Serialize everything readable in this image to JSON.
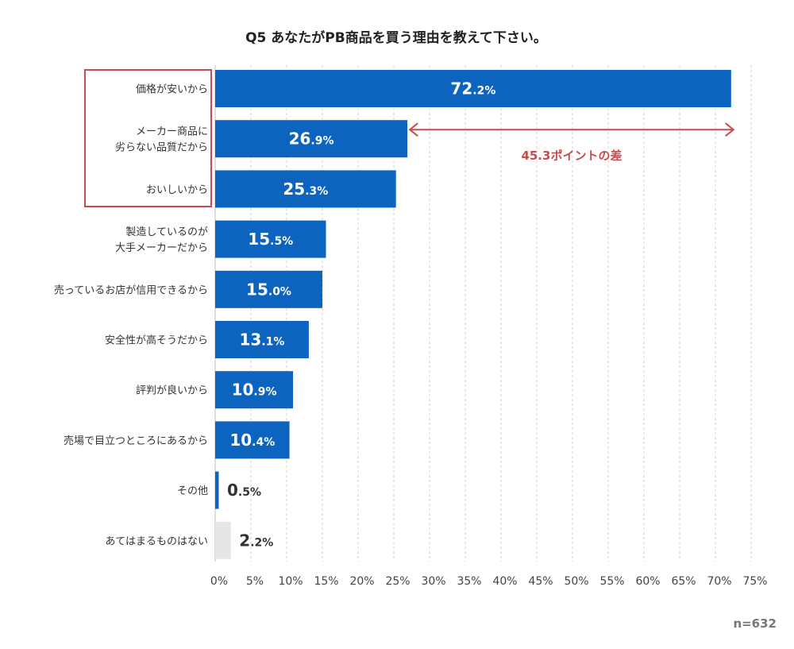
{
  "chart_data": {
    "type": "bar",
    "orientation": "horizontal",
    "title": "Q5 あなたがPB商品を買う理由を教えて下さい。",
    "categories": [
      "価格が安いから",
      "メーカー商品に\n劣らない品質だから",
      "おいしいから",
      "製造しているのが\n大手メーカーだから",
      "売っているお店が信用できるから",
      "安全性が高そうだから",
      "評判が良いから",
      "売場で目立つところにあるから",
      "その他",
      "あてはまるものはない"
    ],
    "values": [
      72.2,
      26.9,
      25.3,
      15.5,
      15.0,
      13.1,
      10.9,
      10.4,
      0.5,
      2.2
    ],
    "value_labels": [
      {
        "int": "72",
        "dec": ".2%"
      },
      {
        "int": "26",
        "dec": ".9%"
      },
      {
        "int": "25",
        "dec": ".3%"
      },
      {
        "int": "15",
        "dec": ".5%"
      },
      {
        "int": "15",
        "dec": ".0%"
      },
      {
        "int": "13",
        "dec": ".1%"
      },
      {
        "int": "10",
        "dec": ".9%"
      },
      {
        "int": "10",
        "dec": ".4%"
      },
      {
        "int": "0",
        "dec": ".5%"
      },
      {
        "int": "2",
        "dec": ".2%"
      }
    ],
    "x_ticks": [
      "0%",
      "5%",
      "10%",
      "15%",
      "20%",
      "25%",
      "30%",
      "35%",
      "40%",
      "45%",
      "50%",
      "55%",
      "60%",
      "65%",
      "70%",
      "75%"
    ],
    "xlim": [
      0,
      75
    ],
    "grid": true,
    "annotation": "45.3ポイントの差",
    "annotation_from": 26.9,
    "annotation_to": 72.2,
    "highlighted_categories": [
      0,
      1,
      2
    ],
    "sample_size": "n=632"
  },
  "colors": {
    "bar": "#0d64bf",
    "bar_muted": "#e6e6e6",
    "label_on_bar": "#ffffff",
    "label_outside": "#333333",
    "accent": "#c94b4b",
    "grid": "#cfcfcf"
  }
}
